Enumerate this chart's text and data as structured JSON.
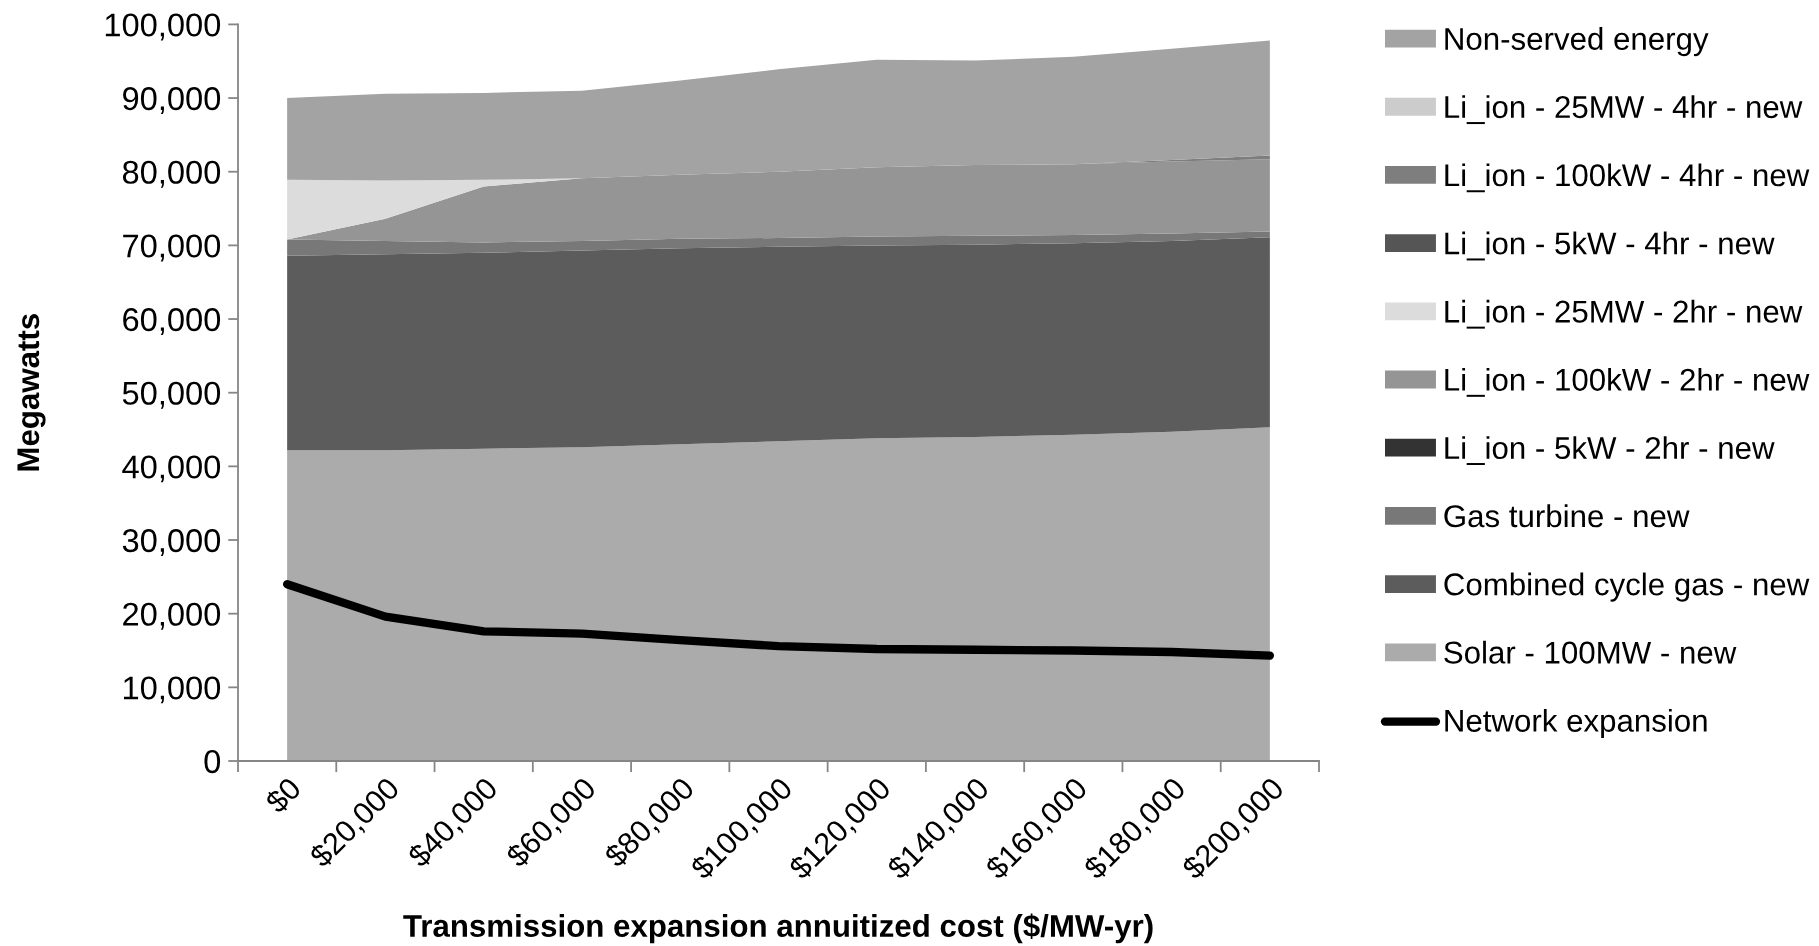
{
  "chart_data": {
    "type": "area",
    "stacked": true,
    "legend": "right",
    "xlabel": "Transmission expansion annuitized cost ($/MW-yr)",
    "ylabel": "Megawatts",
    "categories": [
      "$0",
      "$20,000",
      "$40,000",
      "$60,000",
      "$80,000",
      "$100,000",
      "$120,000",
      "$140,000",
      "$160,000",
      "$180,000",
      "$200,000"
    ],
    "ylim": [
      0,
      100000
    ],
    "yticks": [
      0,
      {
        "value": 10000,
        "label": "10,000"
      },
      {
        "value": 20000,
        "label": "20,000"
      },
      {
        "value": 30000,
        "label": "30,000"
      },
      {
        "value": 40000,
        "label": "40,000"
      },
      {
        "value": 50000,
        "label": "50,000"
      },
      {
        "value": 60000,
        "label": "60,000"
      },
      {
        "value": 70000,
        "label": "70,000"
      },
      {
        "value": 80000,
        "label": "80,000"
      },
      {
        "value": 90000,
        "label": "90,000"
      },
      {
        "value": 100000,
        "label": "100,000"
      }
    ],
    "series": [
      {
        "name": "Solar - 100MW - new",
        "color": "#ababab",
        "values": [
          42200,
          42200,
          42400,
          42600,
          43000,
          43400,
          43800,
          44000,
          44300,
          44700,
          45300
        ]
      },
      {
        "name": "Combined cycle gas - new",
        "color": "#5c5c5c",
        "values": [
          26400,
          26600,
          26600,
          26700,
          26600,
          26400,
          26200,
          26100,
          26000,
          25900,
          25800
        ]
      },
      {
        "name": "Gas turbine - new",
        "color": "#787878",
        "values": [
          2200,
          1800,
          1400,
          1300,
          1300,
          1200,
          1200,
          1200,
          1100,
          1000,
          800
        ]
      },
      {
        "name": "Li_ion - 5kW - 2hr - new",
        "color": "#333333",
        "values": [
          null,
          null,
          null,
          null,
          null,
          null,
          null,
          null,
          null,
          null,
          null
        ]
      },
      {
        "name": "Li_ion - 100kW - 2hr - new",
        "color": "#959595",
        "values": [
          0,
          3000,
          7600,
          8500,
          8700,
          9000,
          9400,
          9600,
          9600,
          9800,
          9800
        ]
      },
      {
        "name": "Li_ion - 25MW - 2hr - new",
        "color": "#dcdcdc",
        "values": [
          8100,
          5200,
          900,
          0,
          0,
          0,
          0,
          0,
          0,
          0,
          0
        ]
      },
      {
        "name": "Li_ion - 5kW - 4hr - new",
        "color": "#555555",
        "values": [
          null,
          null,
          null,
          null,
          null,
          null,
          null,
          null,
          null,
          null,
          null
        ]
      },
      {
        "name": "Li_ion - 100kW - 4hr - new",
        "color": "#7e7e7e",
        "values": [
          0,
          0,
          0,
          0,
          0,
          0,
          0,
          0,
          0,
          200,
          500
        ]
      },
      {
        "name": "Li_ion - 25MW - 4hr - new",
        "color": "#cccccc",
        "values": [
          null,
          null,
          null,
          null,
          null,
          null,
          null,
          null,
          null,
          null,
          null
        ]
      },
      {
        "name": "Non-served energy",
        "color": "#a3a3a3",
        "values": [
          11100,
          11800,
          11800,
          11900,
          12800,
          13900,
          14600,
          14200,
          14600,
          15100,
          15600
        ]
      },
      {
        "name": "Network expansion",
        "type": "line",
        "color": "#000000",
        "values": [
          24000,
          19600,
          17600,
          17300,
          16400,
          15600,
          15200,
          15100,
          15000,
          14800,
          14300
        ]
      }
    ]
  }
}
